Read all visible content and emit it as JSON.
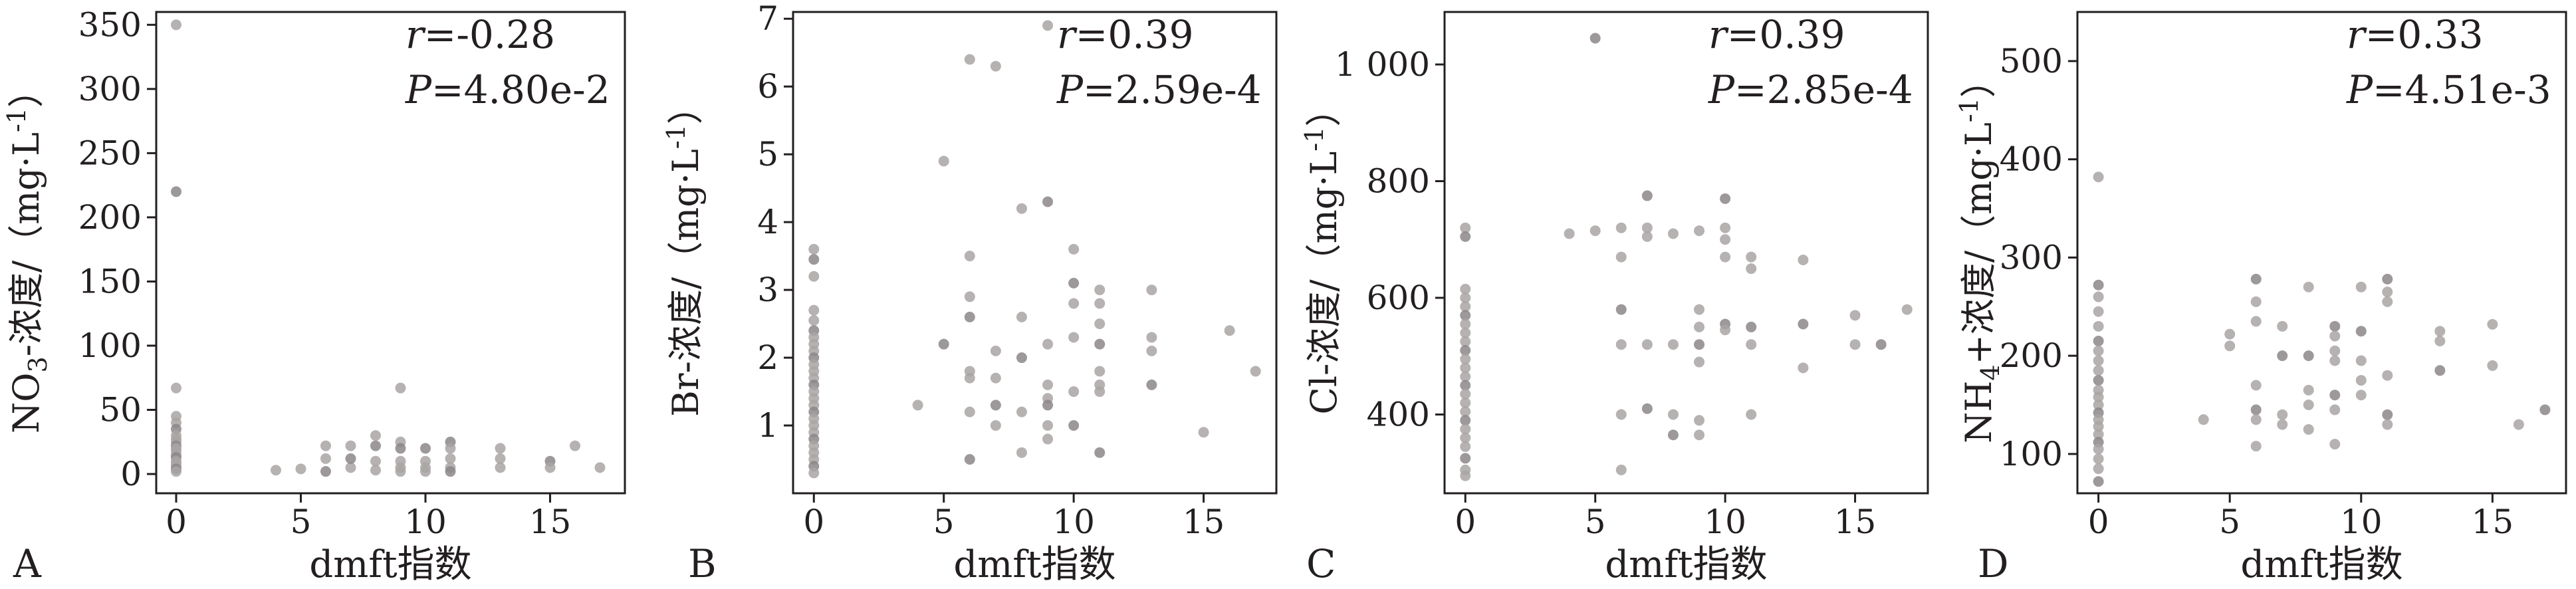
{
  "figure": {
    "point_color": "#a8a4a3",
    "point_color_dark": "#8c8687",
    "axis_color": "#231f20"
  },
  "chart_data": [
    {
      "type": "scatter",
      "panel_label": "A",
      "xlabel": "dmft指数",
      "ylabel": "NO3−浓度/（mg·L−1）",
      "ylabel_parts": {
        "pre": "NO",
        "sub": "3",
        "mid": "-浓度/（mg·L",
        "sup": "-1",
        "post": "）"
      },
      "xlim": [
        -0.8,
        18
      ],
      "ylim": [
        -15,
        360
      ],
      "xticks": [
        0,
        5,
        10,
        15
      ],
      "xtick_labels": [
        "0",
        "5",
        "10",
        "15"
      ],
      "yticks": [
        0,
        50,
        100,
        150,
        200,
        250,
        300,
        350
      ],
      "ytick_labels": [
        "0",
        "50",
        "100",
        "150",
        "200",
        "250",
        "300",
        "350"
      ],
      "stats": {
        "r_value": "=-0.28",
        "p_value": "=4.80e-2"
      },
      "points": [
        [
          0,
          350
        ],
        [
          0,
          220
        ],
        [
          0,
          67
        ],
        [
          0,
          45
        ],
        [
          0,
          40
        ],
        [
          0,
          35
        ],
        [
          0,
          30
        ],
        [
          0,
          27
        ],
        [
          0,
          25
        ],
        [
          0,
          22
        ],
        [
          0,
          20
        ],
        [
          0,
          18
        ],
        [
          0,
          15
        ],
        [
          0,
          13
        ],
        [
          0,
          10
        ],
        [
          0,
          8
        ],
        [
          0,
          6
        ],
        [
          0,
          4
        ],
        [
          0,
          2
        ],
        [
          4,
          3
        ],
        [
          5,
          4
        ],
        [
          6,
          2
        ],
        [
          6,
          12
        ],
        [
          6,
          22
        ],
        [
          7,
          5
        ],
        [
          7,
          12
        ],
        [
          7,
          22
        ],
        [
          8,
          3
        ],
        [
          8,
          10
        ],
        [
          8,
          22
        ],
        [
          8,
          30
        ],
        [
          9,
          67
        ],
        [
          9,
          25
        ],
        [
          9,
          20
        ],
        [
          9,
          10
        ],
        [
          9,
          5
        ],
        [
          9,
          2
        ],
        [
          10,
          20
        ],
        [
          10,
          10
        ],
        [
          10,
          5
        ],
        [
          10,
          2
        ],
        [
          11,
          25
        ],
        [
          11,
          20
        ],
        [
          11,
          12
        ],
        [
          11,
          5
        ],
        [
          11,
          2
        ],
        [
          13,
          20
        ],
        [
          13,
          12
        ],
        [
          13,
          5
        ],
        [
          15,
          10
        ],
        [
          15,
          5
        ],
        [
          16,
          22
        ],
        [
          17,
          5
        ]
      ]
    },
    {
      "type": "scatter",
      "panel_label": "B",
      "xlabel": "dmft指数",
      "ylabel": "Br−浓度/（mg·L−1）",
      "ylabel_parts": {
        "pre": "Br",
        "sub": "",
        "mid": "-浓度/（mg·L",
        "sup": "-1",
        "post": "）"
      },
      "xlim": [
        -0.8,
        17.8
      ],
      "ylim": [
        0,
        7.1
      ],
      "xticks": [
        0,
        5,
        10,
        15
      ],
      "xtick_labels": [
        "0",
        "5",
        "10",
        "15"
      ],
      "yticks": [
        1,
        2,
        3,
        4,
        5,
        6,
        7
      ],
      "ytick_labels": [
        "1",
        "2",
        "3",
        "4",
        "5",
        "6",
        "7"
      ],
      "stats": {
        "r_value": "=0.39",
        "p_value": "=2.59e-4"
      },
      "points": [
        [
          0,
          3.6
        ],
        [
          0,
          3.45
        ],
        [
          0,
          3.2
        ],
        [
          0,
          2.7
        ],
        [
          0,
          2.55
        ],
        [
          0,
          2.4
        ],
        [
          0,
          2.3
        ],
        [
          0,
          2.2
        ],
        [
          0,
          2.1
        ],
        [
          0,
          2.0
        ],
        [
          0,
          1.9
        ],
        [
          0,
          1.8
        ],
        [
          0,
          1.7
        ],
        [
          0,
          1.6
        ],
        [
          0,
          1.5
        ],
        [
          0,
          1.4
        ],
        [
          0,
          1.3
        ],
        [
          0,
          1.2
        ],
        [
          0,
          1.1
        ],
        [
          0,
          1.0
        ],
        [
          0,
          0.9
        ],
        [
          0,
          0.8
        ],
        [
          0,
          0.7
        ],
        [
          0,
          0.6
        ],
        [
          0,
          0.5
        ],
        [
          0,
          0.4
        ],
        [
          0,
          0.3
        ],
        [
          4,
          1.3
        ],
        [
          5,
          4.9
        ],
        [
          5,
          2.2
        ],
        [
          6,
          6.4
        ],
        [
          6,
          3.5
        ],
        [
          6,
          2.9
        ],
        [
          6,
          2.6
        ],
        [
          6,
          1.8
        ],
        [
          6,
          1.7
        ],
        [
          6,
          1.2
        ],
        [
          6,
          0.5
        ],
        [
          7,
          6.3
        ],
        [
          7,
          2.1
        ],
        [
          7,
          1.7
        ],
        [
          7,
          1.3
        ],
        [
          7,
          1.0
        ],
        [
          8,
          4.2
        ],
        [
          8,
          2.6
        ],
        [
          8,
          2.0
        ],
        [
          8,
          1.2
        ],
        [
          8,
          0.6
        ],
        [
          9,
          6.9
        ],
        [
          9,
          4.3
        ],
        [
          9,
          2.2
        ],
        [
          9,
          1.6
        ],
        [
          9,
          1.4
        ],
        [
          9,
          1.3
        ],
        [
          9,
          1.0
        ],
        [
          9,
          0.8
        ],
        [
          10,
          3.6
        ],
        [
          10,
          3.1
        ],
        [
          10,
          2.8
        ],
        [
          10,
          2.3
        ],
        [
          10,
          1.5
        ],
        [
          10,
          1.0
        ],
        [
          11,
          3.0
        ],
        [
          11,
          2.8
        ],
        [
          11,
          2.5
        ],
        [
          11,
          2.2
        ],
        [
          11,
          1.8
        ],
        [
          11,
          1.6
        ],
        [
          11,
          1.5
        ],
        [
          11,
          0.6
        ],
        [
          13,
          3.0
        ],
        [
          13,
          2.3
        ],
        [
          13,
          2.1
        ],
        [
          13,
          1.6
        ],
        [
          15,
          0.9
        ],
        [
          16,
          2.4
        ],
        [
          17,
          1.8
        ]
      ]
    },
    {
      "type": "scatter",
      "panel_label": "C",
      "xlabel": "dmft指数",
      "ylabel": "Cl−浓度/（mg·L−1）",
      "ylabel_parts": {
        "pre": "Cl",
        "sub": "",
        "mid": "-浓度/（mg·L",
        "sup": "-1",
        "post": "）"
      },
      "xlim": [
        -0.8,
        17.8
      ],
      "ylim": [
        265,
        1090
      ],
      "xticks": [
        0,
        5,
        10,
        15
      ],
      "xtick_labels": [
        "0",
        "5",
        "10",
        "15"
      ],
      "yticks": [
        400,
        600,
        800,
        1000
      ],
      "ytick_labels": [
        "400",
        "600",
        "800",
        "1 000"
      ],
      "stats": {
        "r_value": "=0.39",
        "p_value": "=2.85e-4"
      },
      "points": [
        [
          0,
          720
        ],
        [
          0,
          705
        ],
        [
          0,
          615
        ],
        [
          0,
          600
        ],
        [
          0,
          585
        ],
        [
          0,
          570
        ],
        [
          0,
          555
        ],
        [
          0,
          540
        ],
        [
          0,
          525
        ],
        [
          0,
          510
        ],
        [
          0,
          495
        ],
        [
          0,
          480
        ],
        [
          0,
          465
        ],
        [
          0,
          450
        ],
        [
          0,
          435
        ],
        [
          0,
          420
        ],
        [
          0,
          405
        ],
        [
          0,
          390
        ],
        [
          0,
          375
        ],
        [
          0,
          360
        ],
        [
          0,
          345
        ],
        [
          0,
          325
        ],
        [
          0,
          305
        ],
        [
          0,
          295
        ],
        [
          4,
          710
        ],
        [
          5,
          1045
        ],
        [
          5,
          715
        ],
        [
          6,
          720
        ],
        [
          6,
          670
        ],
        [
          6,
          580
        ],
        [
          6,
          520
        ],
        [
          6,
          400
        ],
        [
          6,
          305
        ],
        [
          7,
          775
        ],
        [
          7,
          720
        ],
        [
          7,
          705
        ],
        [
          7,
          520
        ],
        [
          7,
          410
        ],
        [
          8,
          710
        ],
        [
          8,
          520
        ],
        [
          8,
          400
        ],
        [
          8,
          365
        ],
        [
          9,
          715
        ],
        [
          9,
          580
        ],
        [
          9,
          550
        ],
        [
          9,
          520
        ],
        [
          9,
          490
        ],
        [
          9,
          390
        ],
        [
          9,
          365
        ],
        [
          10,
          770
        ],
        [
          10,
          720
        ],
        [
          10,
          700
        ],
        [
          10,
          670
        ],
        [
          10,
          555
        ],
        [
          10,
          545
        ],
        [
          11,
          670
        ],
        [
          11,
          650
        ],
        [
          11,
          550
        ],
        [
          11,
          520
        ],
        [
          11,
          400
        ],
        [
          13,
          665
        ],
        [
          13,
          555
        ],
        [
          13,
          480
        ],
        [
          15,
          570
        ],
        [
          15,
          520
        ],
        [
          16,
          520
        ],
        [
          17,
          580
        ]
      ]
    },
    {
      "type": "scatter",
      "panel_label": "D",
      "xlabel": "dmft指数",
      "ylabel": "NH4+浓度/（mg·L−1）",
      "ylabel_parts": {
        "pre": "NH",
        "sub": "4",
        "mid": "+浓度/（mg·L",
        "sup": "-1",
        "post": "）"
      },
      "xlim": [
        -0.8,
        17.8
      ],
      "ylim": [
        60,
        550
      ],
      "xticks": [
        0,
        5,
        10,
        15
      ],
      "xtick_labels": [
        "0",
        "5",
        "10",
        "15"
      ],
      "yticks": [
        100,
        200,
        300,
        400,
        500
      ],
      "ytick_labels": [
        "100",
        "200",
        "300",
        "400",
        "500"
      ],
      "stats": {
        "r_value": "=0.33",
        "p_value": "=4.51e-3"
      },
      "points": [
        [
          0,
          382
        ],
        [
          0,
          272
        ],
        [
          0,
          260
        ],
        [
          0,
          245
        ],
        [
          0,
          230
        ],
        [
          0,
          215
        ],
        [
          0,
          205
        ],
        [
          0,
          195
        ],
        [
          0,
          185
        ],
        [
          0,
          175
        ],
        [
          0,
          165
        ],
        [
          0,
          158
        ],
        [
          0,
          150
        ],
        [
          0,
          142
        ],
        [
          0,
          135
        ],
        [
          0,
          128
        ],
        [
          0,
          120
        ],
        [
          0,
          112
        ],
        [
          0,
          105
        ],
        [
          0,
          95
        ],
        [
          0,
          85
        ],
        [
          0,
          72
        ],
        [
          4,
          135
        ],
        [
          5,
          222
        ],
        [
          5,
          210
        ],
        [
          6,
          278
        ],
        [
          6,
          255
        ],
        [
          6,
          235
        ],
        [
          6,
          170
        ],
        [
          6,
          145
        ],
        [
          6,
          135
        ],
        [
          6,
          108
        ],
        [
          7,
          230
        ],
        [
          7,
          200
        ],
        [
          7,
          140
        ],
        [
          7,
          130
        ],
        [
          8,
          270
        ],
        [
          8,
          200
        ],
        [
          8,
          165
        ],
        [
          8,
          150
        ],
        [
          8,
          125
        ],
        [
          9,
          230
        ],
        [
          9,
          220
        ],
        [
          9,
          205
        ],
        [
          9,
          195
        ],
        [
          9,
          160
        ],
        [
          9,
          145
        ],
        [
          9,
          110
        ],
        [
          10,
          270
        ],
        [
          10,
          225
        ],
        [
          10,
          195
        ],
        [
          10,
          175
        ],
        [
          10,
          160
        ],
        [
          11,
          278
        ],
        [
          11,
          265
        ],
        [
          11,
          255
        ],
        [
          11,
          180
        ],
        [
          11,
          140
        ],
        [
          11,
          130
        ],
        [
          13,
          225
        ],
        [
          13,
          215
        ],
        [
          13,
          185
        ],
        [
          15,
          232
        ],
        [
          15,
          190
        ],
        [
          16,
          130
        ],
        [
          17,
          145
        ]
      ]
    }
  ]
}
